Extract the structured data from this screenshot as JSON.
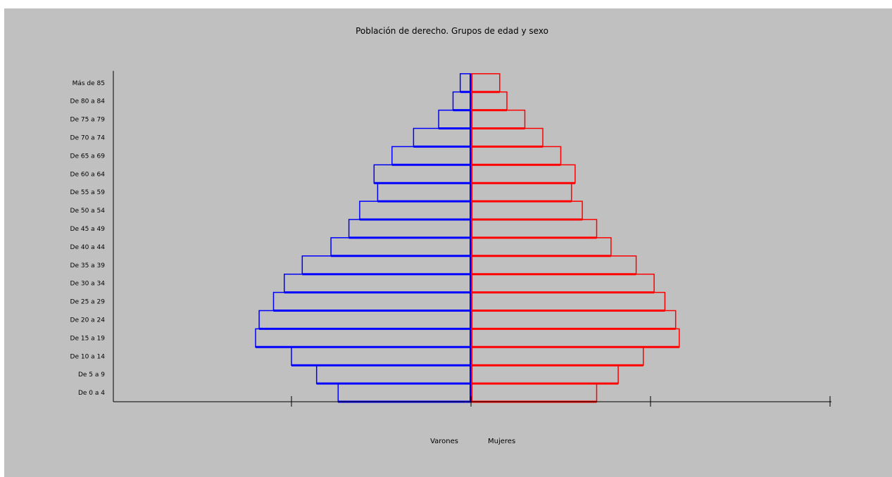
{
  "chart_data": {
    "type": "bar",
    "orientation": "population-pyramid",
    "title": "Población de derecho. Grupos de edad y sexo",
    "categories": [
      "De 0 a 4",
      "De 5 a 9",
      "De 10 a 14",
      "De 15 a 19",
      "De 20 a 24",
      "De 25 a 29",
      "De 30 a 34",
      "De 35 a 39",
      "De 40 a 44",
      "De 45 a 49",
      "De 50 a 54",
      "De 55 a 59",
      "De 60 a 64",
      "De 65 a 69",
      "De 70 a 74",
      "De 75 a 79",
      "De 80 a 84",
      "Más de 85"
    ],
    "series": [
      {
        "name": "Varones",
        "color": "#0000ff",
        "values": [
          0.37,
          0.43,
          0.5,
          0.6,
          0.59,
          0.55,
          0.52,
          0.47,
          0.39,
          0.34,
          0.31,
          0.26,
          0.27,
          0.22,
          0.16,
          0.09,
          0.05,
          0.03
        ]
      },
      {
        "name": "Mujeres",
        "color": "#ff0000",
        "values": [
          0.35,
          0.41,
          0.48,
          0.58,
          0.57,
          0.54,
          0.51,
          0.46,
          0.39,
          0.35,
          0.31,
          0.28,
          0.29,
          0.25,
          0.2,
          0.15,
          0.1,
          0.08
        ]
      }
    ],
    "xlim": [
      -1,
      1
    ],
    "legend": [
      "Varones",
      "Mujeres"
    ],
    "legend_placement": "bottom-center",
    "grid": false
  }
}
